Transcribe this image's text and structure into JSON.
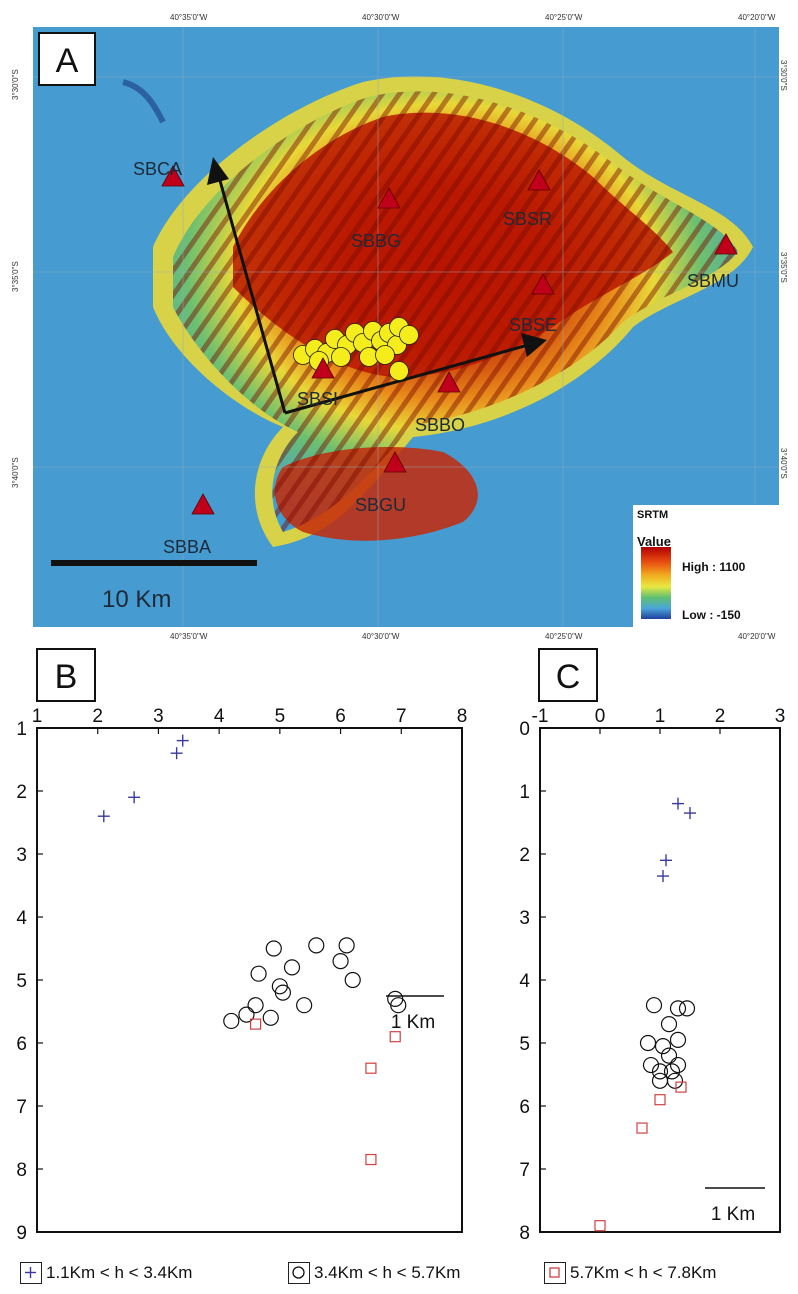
{
  "map": {
    "panel_label": "A",
    "top_coords": [
      "40°35'0\"W",
      "40°30'0\"W",
      "40°25'0\"W",
      "40°20'0\"W"
    ],
    "bottom_coords": [
      "40°35'0\"W",
      "40°30'0\"W",
      "40°25'0\"W",
      "40°20'0\"W"
    ],
    "left_coords": [
      "3°30'0\"S",
      "3°35'0\"S",
      "3°40'0\"S"
    ],
    "right_coords": [
      "3°30'0\"S",
      "3°35'0\"S",
      "3°40'0\"S"
    ],
    "stations": [
      {
        "name": "SBCA",
        "color": "#c0001a"
      },
      {
        "name": "SBBG",
        "color": "#c0001a"
      },
      {
        "name": "SBSR",
        "color": "#c0001a"
      },
      {
        "name": "SBMU",
        "color": "#c0001a"
      },
      {
        "name": "SBSE",
        "color": "#c0001a"
      },
      {
        "name": "SBSI",
        "color": "#c0001a"
      },
      {
        "name": "SBBO",
        "color": "#c0001a"
      },
      {
        "name": "SBGU",
        "color": "#c0001a"
      },
      {
        "name": "SBBA",
        "color": "#c0001a"
      }
    ],
    "scale_bar": "10 Km",
    "legend": {
      "title": "SRTM",
      "subtitle": "Value",
      "high": "High : 1100",
      "low": "Low : -150",
      "colors": [
        "#b00000",
        "#e84a10",
        "#f0b020",
        "#e8e840",
        "#60c070",
        "#4aa6d8",
        "#2040a0"
      ]
    },
    "epicenter_color": "#f5ec1c"
  },
  "chart_data": [
    {
      "type": "scatter",
      "panel_label": "B",
      "x_ticks": [
        "1",
        "2",
        "3",
        "4",
        "5",
        "6",
        "7",
        "8"
      ],
      "y_ticks": [
        "1",
        "2",
        "3",
        "4",
        "5",
        "6",
        "7",
        "8",
        "9"
      ],
      "xlim": [
        1,
        8
      ],
      "ylim": [
        1,
        9
      ],
      "y_inverted": true,
      "scale_label": "1 Km",
      "series": [
        {
          "symbol": "plus",
          "color": "#3a3aa0",
          "points": [
            [
              2.1,
              2.4
            ],
            [
              2.6,
              2.1
            ],
            [
              3.3,
              1.4
            ],
            [
              3.4,
              1.2
            ]
          ]
        },
        {
          "symbol": "circle",
          "color": "#111111",
          "points": [
            [
              4.2,
              5.65
            ],
            [
              4.45,
              5.55
            ],
            [
              4.6,
              5.4
            ],
            [
              4.65,
              4.9
            ],
            [
              4.85,
              5.6
            ],
            [
              4.9,
              4.5
            ],
            [
              5.0,
              5.1
            ],
            [
              5.05,
              5.2
            ],
            [
              5.2,
              4.8
            ],
            [
              5.4,
              5.4
            ],
            [
              5.6,
              4.45
            ],
            [
              6.0,
              4.7
            ],
            [
              6.1,
              4.45
            ],
            [
              6.2,
              5.0
            ],
            [
              6.9,
              5.3
            ],
            [
              6.95,
              5.4
            ]
          ]
        },
        {
          "symbol": "square",
          "color": "#d04040",
          "points": [
            [
              4.6,
              5.7
            ],
            [
              6.9,
              5.9
            ],
            [
              6.5,
              6.4
            ],
            [
              6.5,
              7.85
            ]
          ]
        }
      ]
    },
    {
      "type": "scatter",
      "panel_label": "C",
      "x_ticks": [
        "-1",
        "0",
        "1",
        "2",
        "3"
      ],
      "y_ticks": [
        "0",
        "1",
        "2",
        "3",
        "4",
        "5",
        "6",
        "7",
        "8"
      ],
      "xlim": [
        -1,
        3
      ],
      "ylim": [
        0,
        8
      ],
      "y_inverted": true,
      "scale_label": "1 Km",
      "series": [
        {
          "symbol": "plus",
          "color": "#3a3aa0",
          "points": [
            [
              1.3,
              1.2
            ],
            [
              1.5,
              1.35
            ],
            [
              1.1,
              2.1
            ],
            [
              1.05,
              2.35
            ]
          ]
        },
        {
          "symbol": "circle",
          "color": "#111111",
          "points": [
            [
              0.9,
              4.4
            ],
            [
              1.3,
              4.45
            ],
            [
              1.45,
              4.45
            ],
            [
              1.15,
              4.7
            ],
            [
              0.8,
              5.0
            ],
            [
              1.3,
              4.95
            ],
            [
              1.05,
              5.05
            ],
            [
              1.15,
              5.2
            ],
            [
              0.85,
              5.35
            ],
            [
              1.3,
              5.35
            ],
            [
              1.0,
              5.45
            ],
            [
              1.2,
              5.45
            ],
            [
              1.25,
              5.6
            ],
            [
              1.0,
              5.6
            ]
          ]
        },
        {
          "symbol": "square",
          "color": "#d04040",
          "points": [
            [
              1.35,
              5.7
            ],
            [
              1.0,
              5.9
            ],
            [
              0.7,
              6.35
            ],
            [
              0.0,
              7.9
            ]
          ]
        }
      ]
    }
  ],
  "legend": {
    "items": [
      {
        "label": "1.1Km < h < 3.4Km",
        "symbol": "plus",
        "color": "#3a3aa0"
      },
      {
        "label": "3.4Km < h < 5.7Km",
        "symbol": "circle",
        "color": "#111111"
      },
      {
        "label": "5.7Km < h < 7.8Km",
        "symbol": "square",
        "color": "#d04040"
      }
    ]
  }
}
